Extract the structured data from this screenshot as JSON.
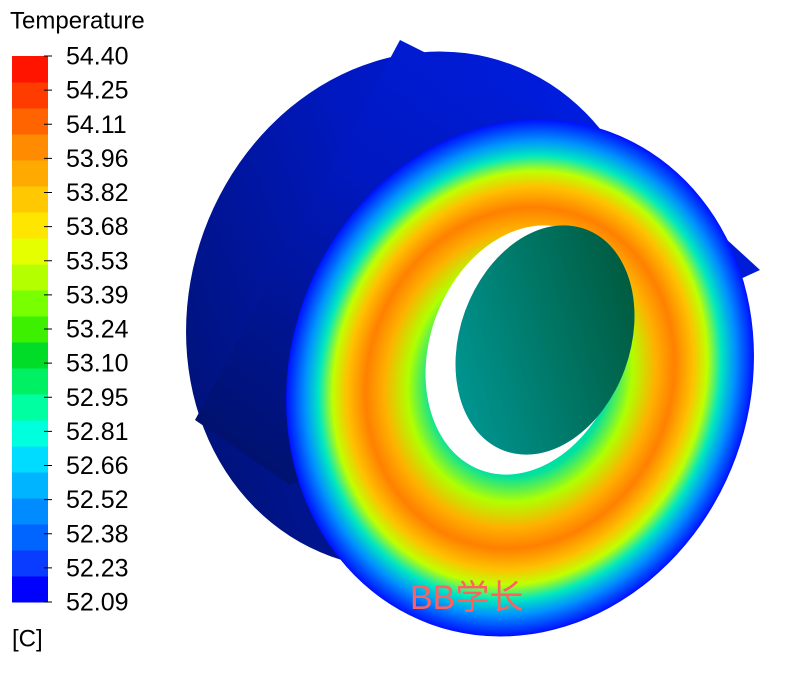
{
  "legend": {
    "title": "Temperature",
    "labels": [
      "54.40",
      "54.25",
      "54.11",
      "53.96",
      "53.82",
      "53.68",
      "53.53",
      "53.39",
      "53.24",
      "53.10",
      "52.95",
      "52.81",
      "52.66",
      "52.52",
      "52.38",
      "52.23",
      "52.09"
    ],
    "unit": "[C]",
    "colors": [
      "#0000ff",
      "#0a3cff",
      "#0064ff",
      "#008cff",
      "#00b4ff",
      "#00dcff",
      "#00ffdc",
      "#00ffa0",
      "#00f064",
      "#00dc28",
      "#3cf000",
      "#78ff00",
      "#b4ff00",
      "#e6ff00",
      "#ffe600",
      "#ffc800",
      "#ffaa00",
      "#ff8c00",
      "#ff6400",
      "#ff3c00",
      "#ff1400"
    ]
  },
  "watermark": "BB学长"
}
